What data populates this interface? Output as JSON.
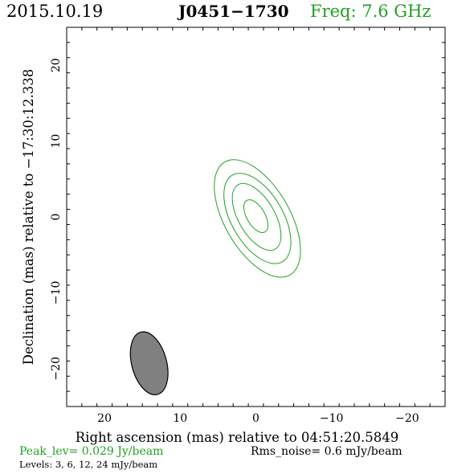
{
  "header": {
    "date": "2015.10.19",
    "source": "J0451−1730",
    "frequency": "Freq: 7.6 GHz"
  },
  "colors": {
    "contour": "#22a022",
    "beam_fill": "#808080",
    "accent_text": "#22a022"
  },
  "chart_data": {
    "type": "contour",
    "xlabel": "Right ascension (mas) relative to 04:51:20.5849",
    "ylabel": "Declination (mas) relative to −17:30:12.338",
    "xlim": [
      25,
      -25
    ],
    "ylim": [
      -25,
      25
    ],
    "x_ticks": [
      20,
      10,
      0,
      -10,
      -20
    ],
    "x_tick_labels": [
      "20",
      "10",
      "0",
      "−10",
      "−20"
    ],
    "y_ticks": [
      20,
      10,
      0,
      -10,
      -20
    ],
    "y_tick_labels": [
      "20",
      "10",
      "0",
      "−10",
      "−20"
    ],
    "contours": [
      {
        "level": 3,
        "cx": -0.2,
        "cy": -0.2,
        "rx": 4.3,
        "ry": 8.6,
        "rot": 30
      },
      {
        "level": 6,
        "cx": -0.2,
        "cy": -0.2,
        "rx": 3.4,
        "ry": 6.6,
        "rot": 30
      },
      {
        "level": 12,
        "cx": -0.1,
        "cy": 0.0,
        "rx": 2.4,
        "ry": 4.9,
        "rot": 30
      },
      {
        "level": 24,
        "cx": 0.0,
        "cy": 0.1,
        "rx": 1.2,
        "ry": 2.4,
        "rot": 30
      }
    ],
    "beam": {
      "cx": 14.1,
      "cy": -19.3,
      "major": 8.5,
      "minor": 4.6,
      "pa": 15
    }
  },
  "footer": {
    "peak": "Peak_lev=  0.029 Jy/beam",
    "rms": "Rms_noise=   0.6 mJy/beam",
    "levels": "Levels:   3,   6,  12,  24 mJy/beam"
  }
}
